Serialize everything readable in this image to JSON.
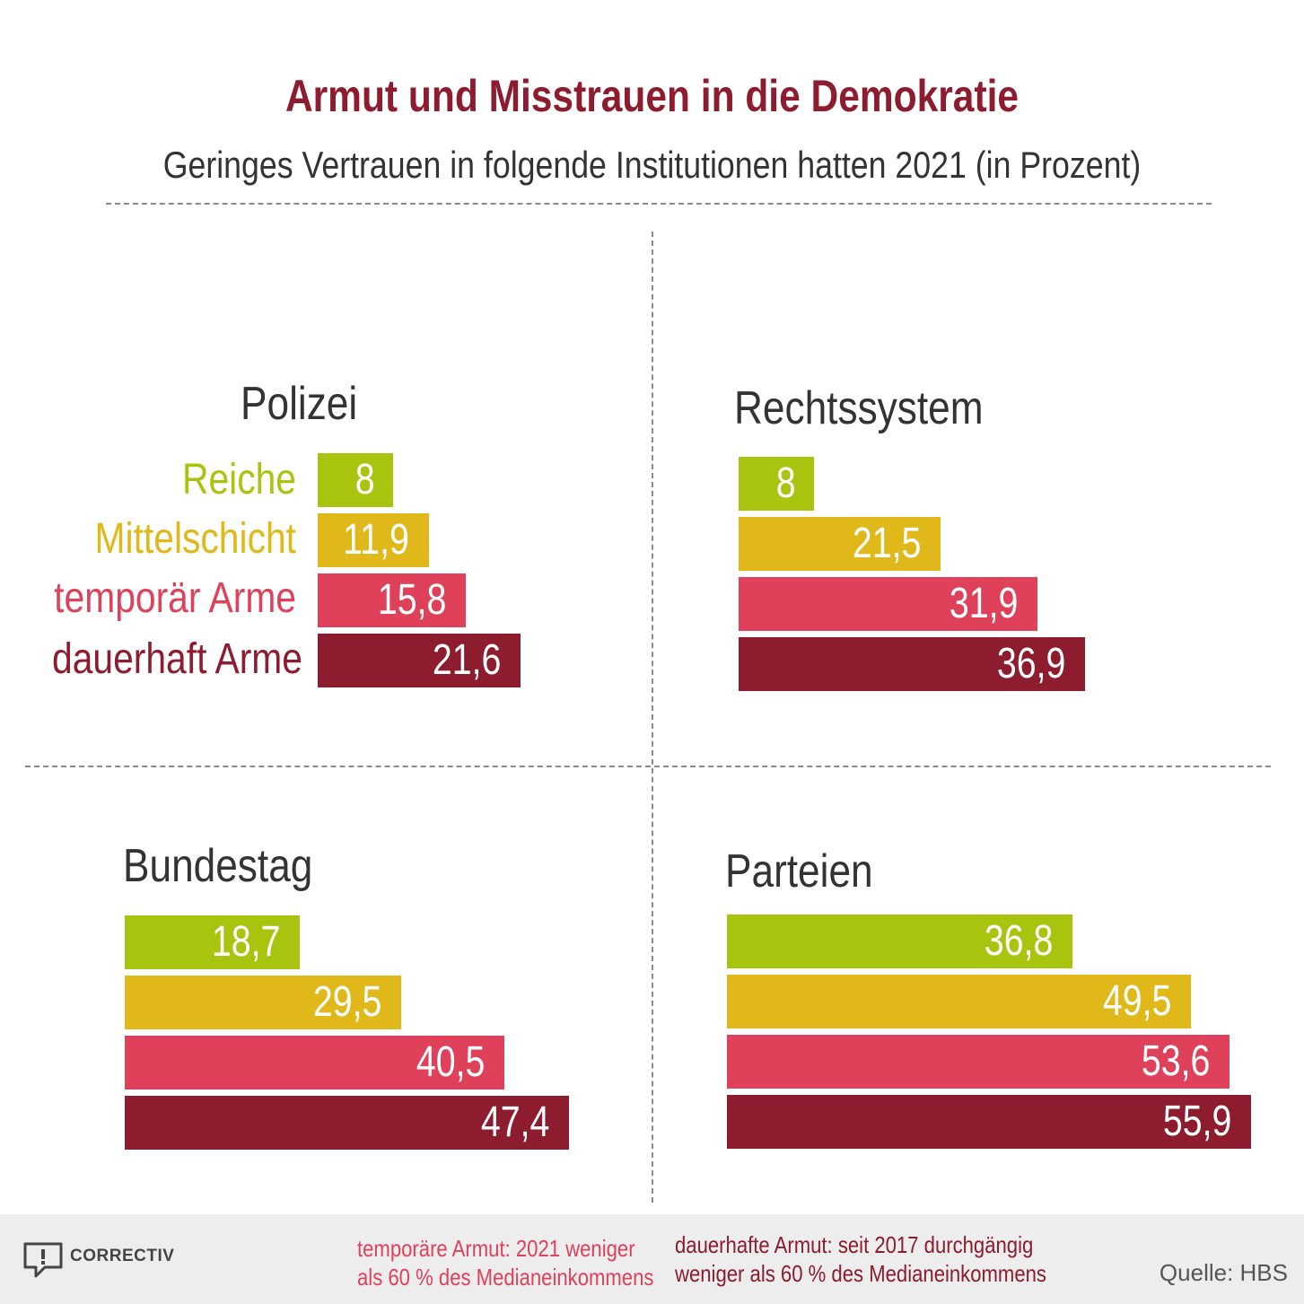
{
  "title": "Armut und Misstrauen in die Demokratie",
  "subtitle": "Geringes Vertrauen in folgende Institutionen hatten 2021 (in Prozent)",
  "colors": {
    "title": "#8c1c2e",
    "Reiche": "#a8c40f",
    "Mittelschicht": "#e0b81a",
    "temporär Arme": "#de4159",
    "dauerhaft Arme": "#8c1c2e"
  },
  "chart_data": {
    "type": "bar",
    "orientation": "horizontal",
    "unit": "Prozent",
    "categories": [
      "Reiche",
      "Mittelschicht",
      "temporär Arme",
      "dauerhaft Arme"
    ],
    "panels": [
      {
        "title": "Polizei",
        "values": [
          8,
          11.9,
          15.8,
          21.6
        ],
        "labels": [
          "8",
          "11,9",
          "15,8",
          "21,6"
        ]
      },
      {
        "title": "Rechtssystem",
        "values": [
          8,
          21.5,
          31.9,
          36.9
        ],
        "labels": [
          "8",
          "21,5",
          "31,9",
          "36,9"
        ]
      },
      {
        "title": "Bundestag",
        "values": [
          18.7,
          29.5,
          40.5,
          47.4
        ],
        "labels": [
          "18,7",
          "29,5",
          "40,5",
          "47,4"
        ]
      },
      {
        "title": "Parteien",
        "values": [
          36.8,
          49.5,
          53.6,
          55.9
        ],
        "labels": [
          "36,8",
          "49,5",
          "53,6",
          "55,9"
        ]
      }
    ]
  },
  "footer": {
    "logo_text": "CORRECTIV",
    "note_temporary": [
      "temporäre Armut: 2021 weniger",
      "als 60 % des Medianeinkommens"
    ],
    "note_permanent": [
      "dauerhafte Armut: seit 2017 durchgängig",
      "weniger als 60 % des Medianeinkommens"
    ],
    "source": "Quelle: HBS"
  }
}
